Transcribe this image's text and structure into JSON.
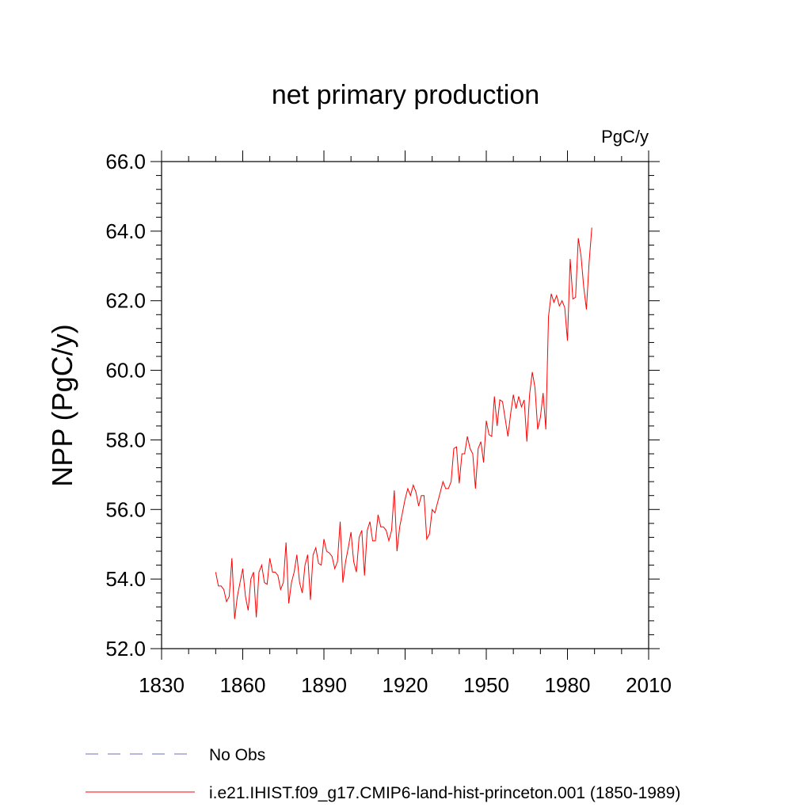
{
  "chart_data": {
    "type": "line",
    "title": "net primary production",
    "units_label": "PgC/y",
    "ylabel": "NPP  (PgC/y)",
    "xlabel": "",
    "xlim": [
      1830,
      2010
    ],
    "ylim": [
      52.0,
      66.0
    ],
    "x_ticks": [
      1830,
      1860,
      1890,
      1920,
      1950,
      1980,
      2010
    ],
    "x_tick_labels": [
      "1830",
      "1860",
      "1890",
      "1920",
      "1950",
      "1980",
      "2010"
    ],
    "y_ticks": [
      52,
      54,
      56,
      58,
      60,
      62,
      64,
      66
    ],
    "y_tick_labels": [
      "52.0",
      "54.0",
      "56.0",
      "58.0",
      "60.0",
      "62.0",
      "64.0",
      "66.0"
    ],
    "grid": false,
    "legend_position": "bottom",
    "series": [
      {
        "name": "No Obs",
        "color": "#6f6fb8",
        "dash": "dashed",
        "x": [],
        "values": []
      },
      {
        "name": "i.e21.IHIST.f09_g17.CMIP6-land-hist-princeton.001 (1850-1989)",
        "color": "#ff0000",
        "dash": "solid",
        "x": [
          1850,
          1851,
          1852,
          1853,
          1854,
          1855,
          1856,
          1857,
          1858,
          1859,
          1860,
          1861,
          1862,
          1863,
          1864,
          1865,
          1866,
          1867,
          1868,
          1869,
          1870,
          1871,
          1872,
          1873,
          1874,
          1875,
          1876,
          1877,
          1878,
          1879,
          1880,
          1881,
          1882,
          1883,
          1884,
          1885,
          1886,
          1887,
          1888,
          1889,
          1890,
          1891,
          1892,
          1893,
          1894,
          1895,
          1896,
          1897,
          1898,
          1899,
          1900,
          1901,
          1902,
          1903,
          1904,
          1905,
          1906,
          1907,
          1908,
          1909,
          1910,
          1911,
          1912,
          1913,
          1914,
          1915,
          1916,
          1917,
          1918,
          1919,
          1920,
          1921,
          1922,
          1923,
          1924,
          1925,
          1926,
          1927,
          1928,
          1929,
          1930,
          1931,
          1932,
          1933,
          1934,
          1935,
          1936,
          1937,
          1938,
          1939,
          1940,
          1941,
          1942,
          1943,
          1944,
          1945,
          1946,
          1947,
          1948,
          1949,
          1950,
          1951,
          1952,
          1953,
          1954,
          1955,
          1956,
          1957,
          1958,
          1959,
          1960,
          1961,
          1962,
          1963,
          1964,
          1965,
          1966,
          1967,
          1968,
          1969,
          1970,
          1971,
          1972,
          1973,
          1974,
          1975,
          1976,
          1977,
          1978,
          1979,
          1980,
          1981,
          1982,
          1983,
          1984,
          1985,
          1986,
          1987,
          1988,
          1989
        ],
        "values": [
          54.2,
          53.8,
          53.8,
          53.7,
          53.35,
          53.5,
          54.6,
          52.85,
          53.5,
          53.9,
          54.3,
          53.5,
          53.1,
          54.0,
          54.2,
          52.9,
          54.2,
          54.4,
          53.9,
          53.85,
          54.6,
          54.2,
          54.2,
          54.1,
          53.7,
          53.9,
          55.05,
          53.3,
          53.9,
          54.2,
          54.7,
          53.9,
          53.6,
          54.4,
          54.7,
          53.4,
          54.7,
          54.9,
          54.45,
          54.4,
          55.15,
          54.8,
          54.75,
          54.65,
          54.3,
          54.5,
          55.65,
          53.9,
          54.5,
          54.9,
          55.35,
          54.5,
          54.2,
          55.2,
          55.4,
          54.1,
          55.4,
          55.65,
          55.1,
          55.1,
          55.85,
          55.5,
          55.5,
          55.4,
          55.1,
          55.4,
          56.55,
          54.8,
          55.5,
          55.9,
          56.3,
          56.6,
          56.4,
          56.7,
          56.5,
          56.1,
          56.4,
          56.4,
          55.15,
          55.3,
          56.0,
          55.9,
          56.2,
          56.5,
          56.8,
          56.6,
          56.6,
          56.8,
          57.75,
          57.8,
          56.75,
          57.6,
          57.6,
          58.1,
          57.75,
          57.6,
          56.6,
          57.75,
          57.95,
          57.35,
          58.55,
          58.15,
          58.1,
          59.25,
          58.4,
          59.15,
          59.1,
          58.6,
          58.1,
          58.75,
          59.3,
          58.9,
          59.25,
          58.95,
          59.15,
          57.95,
          59.3,
          59.95,
          59.5,
          58.3,
          58.65,
          59.35,
          58.3,
          61.55,
          62.2,
          61.95,
          62.15,
          61.85,
          62.0,
          61.8,
          60.85,
          63.2,
          62.05,
          62.1,
          63.8,
          63.3,
          62.4,
          61.75,
          63.1,
          64.1
        ]
      }
    ]
  }
}
